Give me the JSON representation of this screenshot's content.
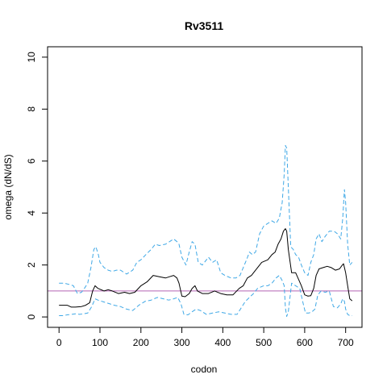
{
  "chart_data": {
    "type": "line",
    "title": "Rv3511",
    "xlabel": "codon",
    "ylabel": "omega (dN/dS)",
    "xlim": [
      -28,
      740
    ],
    "ylim": [
      -0.4,
      10.4
    ],
    "xticks": [
      0,
      100,
      200,
      300,
      400,
      500,
      600,
      700
    ],
    "yticks": [
      0,
      2,
      4,
      6,
      8,
      10
    ],
    "reference_line": {
      "y": 1,
      "color": "#b565b5"
    },
    "colors": {
      "estimate": "#000000",
      "bounds": "#3fa8e6"
    },
    "grid": false,
    "legend": "none",
    "series": [
      {
        "style": "solid",
        "x": [
          0,
          10,
          20,
          30,
          40,
          55,
          65,
          75,
          82,
          88,
          95,
          110,
          120,
          130,
          145,
          160,
          172,
          185,
          200,
          215,
          230,
          245,
          260,
          270,
          280,
          288,
          293,
          300,
          308,
          318,
          325,
          332,
          338,
          350,
          365,
          380,
          395,
          410,
          425,
          440,
          450,
          460,
          470,
          480,
          495,
          510,
          520,
          528,
          535,
          542,
          548,
          553,
          556,
          560,
          568,
          578,
          585,
          592,
          600,
          608,
          615,
          622,
          628,
          635,
          645,
          655,
          665,
          675,
          685,
          692,
          695,
          700,
          705,
          710,
          716
        ],
        "y": [
          0.45,
          0.45,
          0.45,
          0.38,
          0.38,
          0.4,
          0.45,
          0.55,
          1.0,
          1.2,
          1.1,
          1.0,
          1.05,
          1.0,
          0.9,
          0.95,
          0.9,
          0.95,
          1.2,
          1.35,
          1.6,
          1.55,
          1.5,
          1.55,
          1.6,
          1.5,
          1.3,
          0.8,
          0.78,
          0.9,
          1.1,
          1.2,
          1.0,
          0.9,
          0.9,
          1.0,
          0.9,
          0.85,
          0.85,
          1.1,
          1.2,
          1.5,
          1.6,
          1.8,
          2.1,
          2.2,
          2.4,
          2.5,
          2.8,
          3.0,
          3.3,
          3.4,
          3.3,
          2.6,
          1.7,
          1.7,
          1.45,
          1.2,
          0.85,
          0.8,
          0.82,
          1.1,
          1.6,
          1.85,
          1.9,
          1.95,
          1.9,
          1.8,
          1.85,
          2.0,
          2.05,
          1.7,
          1.2,
          0.7,
          0.62
        ]
      },
      {
        "style": "dashed",
        "x": [
          0,
          12,
          25,
          35,
          45,
          55,
          62,
          70,
          78,
          85,
          90,
          96,
          100,
          110,
          120,
          130,
          140,
          150,
          165,
          180,
          190,
          200,
          212,
          225,
          235,
          245,
          260,
          270,
          280,
          288,
          293,
          300,
          310,
          318,
          325,
          332,
          340,
          350,
          365,
          375,
          385,
          395,
          405,
          420,
          432,
          442,
          450,
          458,
          465,
          472,
          480,
          490,
          500,
          510,
          520,
          530,
          538,
          545,
          550,
          553,
          556,
          560,
          566,
          572,
          578,
          585,
          592,
          600,
          608,
          615,
          622,
          628,
          635,
          642,
          650,
          660,
          672,
          680,
          688,
          693,
          697,
          700,
          705,
          710,
          716
        ],
        "y": [
          1.3,
          1.3,
          1.25,
          1.2,
          0.9,
          0.95,
          1.1,
          1.3,
          1.9,
          2.6,
          2.7,
          2.4,
          2.1,
          1.9,
          1.8,
          1.75,
          1.8,
          1.8,
          1.65,
          1.8,
          2.1,
          2.2,
          2.4,
          2.6,
          2.8,
          2.75,
          2.8,
          2.9,
          3.0,
          2.9,
          2.8,
          2.3,
          2.0,
          2.5,
          2.9,
          2.8,
          2.1,
          2.0,
          2.3,
          2.1,
          2.2,
          1.7,
          1.6,
          1.5,
          1.5,
          1.6,
          1.9,
          2.2,
          2.5,
          2.4,
          2.5,
          3.2,
          3.5,
          3.6,
          3.7,
          3.6,
          3.8,
          4.4,
          5.5,
          6.6,
          6.5,
          5.0,
          2.7,
          2.6,
          2.4,
          2.3,
          2.0,
          1.7,
          1.6,
          2.1,
          2.4,
          3.0,
          3.2,
          2.9,
          3.1,
          3.3,
          3.3,
          3.2,
          3.0,
          3.8,
          4.9,
          4.4,
          2.8,
          2.0,
          2.1
        ]
      },
      {
        "style": "dashed",
        "x": [
          0,
          10,
          20,
          30,
          40,
          50,
          60,
          70,
          80,
          88,
          95,
          105,
          115,
          125,
          135,
          150,
          165,
          180,
          195,
          210,
          225,
          240,
          255,
          268,
          280,
          290,
          298,
          305,
          315,
          325,
          335,
          345,
          360,
          375,
          390,
          405,
          420,
          435,
          445,
          455,
          465,
          475,
          485,
          500,
          510,
          520,
          530,
          538,
          545,
          550,
          553,
          556,
          560,
          568,
          578,
          588,
          595,
          602,
          610,
          618,
          625,
          632,
          640,
          650,
          660,
          670,
          680,
          688,
          693,
          697,
          700,
          705,
          710,
          716
        ],
        "y": [
          0.05,
          0.05,
          0.08,
          0.1,
          0.12,
          0.1,
          0.12,
          0.15,
          0.4,
          0.7,
          0.65,
          0.6,
          0.55,
          0.5,
          0.45,
          0.4,
          0.3,
          0.25,
          0.45,
          0.6,
          0.65,
          0.75,
          0.7,
          0.65,
          0.7,
          0.75,
          0.5,
          0.1,
          0.08,
          0.2,
          0.3,
          0.25,
          0.1,
          0.15,
          0.2,
          0.15,
          0.1,
          0.1,
          0.35,
          0.6,
          0.75,
          0.9,
          1.1,
          1.2,
          1.2,
          1.3,
          1.5,
          1.6,
          1.4,
          1.2,
          0.35,
          0.02,
          0.2,
          1.3,
          1.2,
          1.1,
          0.6,
          0.15,
          0.15,
          0.2,
          0.3,
          0.85,
          1.0,
          0.95,
          1.0,
          0.4,
          0.35,
          0.5,
          0.7,
          0.6,
          0.3,
          0.1,
          0.05,
          0.05
        ]
      }
    ]
  }
}
